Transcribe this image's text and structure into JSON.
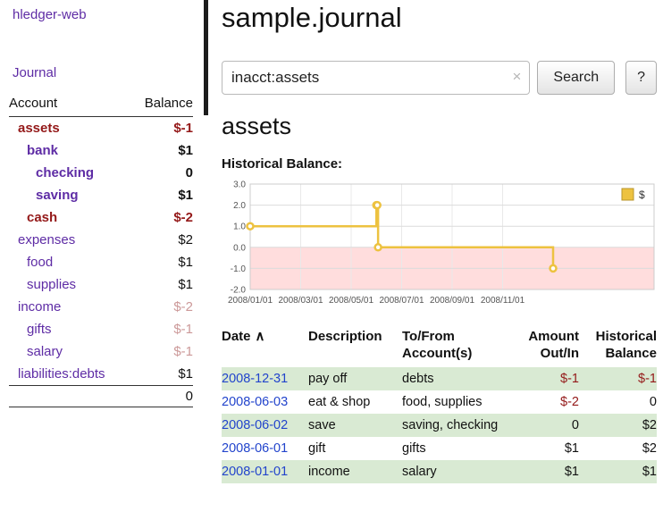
{
  "sidebar": {
    "app_title": "hledger-web",
    "nav": {
      "journal": "Journal"
    },
    "accounts_table": {
      "headers": {
        "account": "Account",
        "balance": "Balance"
      },
      "rows": [
        {
          "name": "assets",
          "balance": "$-1",
          "indent": 0,
          "bold": true,
          "name_style": "neg",
          "balance_style": "neg-bold"
        },
        {
          "name": "bank",
          "balance": "$1",
          "indent": 1,
          "bold": true,
          "name_style": "link",
          "balance_style": "bold"
        },
        {
          "name": "checking",
          "balance": "0",
          "indent": 2,
          "bold": true,
          "name_style": "link",
          "balance_style": "bold"
        },
        {
          "name": "saving",
          "balance": "$1",
          "indent": 2,
          "bold": true,
          "name_style": "link",
          "balance_style": "bold"
        },
        {
          "name": "cash",
          "balance": "$-2",
          "indent": 1,
          "bold": true,
          "name_style": "neg",
          "balance_style": "neg-bold"
        },
        {
          "name": "expenses",
          "balance": "$2",
          "indent": 0,
          "bold": false,
          "name_style": "link",
          "balance_style": "normal"
        },
        {
          "name": "food",
          "balance": "$1",
          "indent": 1,
          "bold": false,
          "name_style": "link",
          "balance_style": "normal"
        },
        {
          "name": "supplies",
          "balance": "$1",
          "indent": 1,
          "bold": false,
          "name_style": "link",
          "balance_style": "normal"
        },
        {
          "name": "income",
          "balance": "$-2",
          "indent": 0,
          "bold": false,
          "name_style": "link",
          "balance_style": "rose"
        },
        {
          "name": "gifts",
          "balance": "$-1",
          "indent": 1,
          "bold": false,
          "name_style": "link",
          "balance_style": "rose"
        },
        {
          "name": "salary",
          "balance": "$-1",
          "indent": 1,
          "bold": false,
          "name_style": "link",
          "balance_style": "rose"
        },
        {
          "name": "liabilities:debts",
          "balance": "$1",
          "indent": 0,
          "bold": false,
          "name_style": "link",
          "balance_style": "normal"
        }
      ],
      "total": "0"
    }
  },
  "main": {
    "title": "sample.journal",
    "search": {
      "value": "inacct:assets",
      "clear_icon": "×",
      "search_button": "Search",
      "help_button": "?"
    },
    "account_heading": "assets",
    "chart_title": "Historical Balance:"
  },
  "chart_data": {
    "type": "line",
    "step": true,
    "title": "Historical Balance",
    "series": [
      {
        "name": "$",
        "color": "#edc240",
        "points": [
          {
            "date": "2008-01-01",
            "value": 1
          },
          {
            "date": "2008-06-01",
            "value": 2
          },
          {
            "date": "2008-06-02",
            "value": 2
          },
          {
            "date": "2008-06-03",
            "value": 0
          },
          {
            "date": "2008-12-31",
            "value": -1
          }
        ]
      }
    ],
    "ylim": [
      -2,
      3
    ],
    "yticks": [
      "3.0",
      "2.0",
      "1.0",
      "0.0",
      "-1.0",
      "-2.0"
    ],
    "xticks": [
      {
        "label": "2008/01/01",
        "month": 0
      },
      {
        "label": "2008/03/01",
        "month": 2
      },
      {
        "label": "2008/05/01",
        "month": 4
      },
      {
        "label": "2008/07/01",
        "month": 6
      },
      {
        "label": "2008/09/01",
        "month": 8
      },
      {
        "label": "2008/11/01",
        "month": 10
      }
    ],
    "x_months_span": 16,
    "negative_region_color": "#ffdddd",
    "legend": {
      "label": "$",
      "position": "top-right"
    },
    "grid": true
  },
  "register": {
    "headers": {
      "date": "Date",
      "sort_icon": "∧",
      "description": "Description",
      "account": "To/From\nAccount(s)",
      "amount": "Amount\nOut/In",
      "balance": "Historical\nBalance"
    },
    "rows": [
      {
        "date": "2008-12-31",
        "description": "pay off",
        "account": "debts",
        "amount": "$-1",
        "amount_neg": true,
        "balance": "$-1",
        "balance_neg": true
      },
      {
        "date": "2008-06-03",
        "description": "eat & shop",
        "account": "food, supplies",
        "amount": "$-2",
        "amount_neg": true,
        "balance": "0",
        "balance_neg": false
      },
      {
        "date": "2008-06-02",
        "description": "save",
        "account": "saving, checking",
        "amount": "0",
        "amount_neg": false,
        "balance": "$2",
        "balance_neg": false
      },
      {
        "date": "2008-06-01",
        "description": "gift",
        "account": "gifts",
        "amount": "$1",
        "amount_neg": false,
        "balance": "$2",
        "balance_neg": false
      },
      {
        "date": "2008-01-01",
        "description": "income",
        "account": "salary",
        "amount": "$1",
        "amount_neg": false,
        "balance": "$1",
        "balance_neg": false
      }
    ]
  },
  "colors": {
    "link_purple": "#5e2ca5",
    "date_link_blue": "#2244cc",
    "negative_red": "#941919",
    "muted_rose": "#cc9999",
    "row_green": "#d9ead3",
    "chart_line_yellow": "#edc240",
    "chart_negative_bg": "#ffdddd"
  }
}
